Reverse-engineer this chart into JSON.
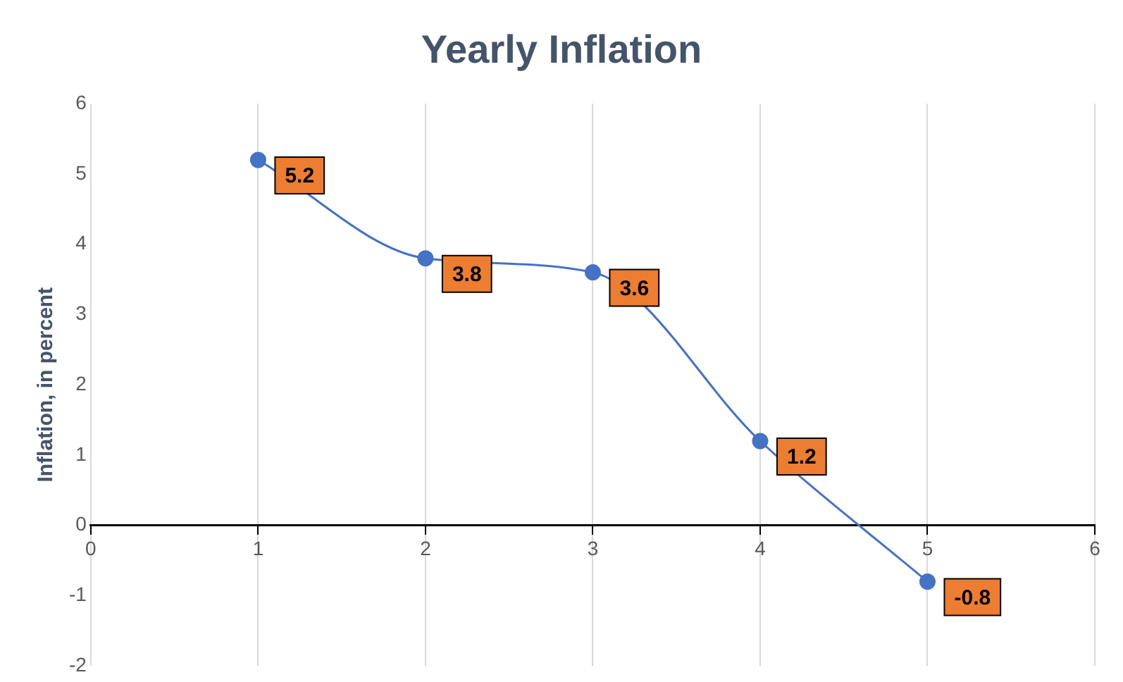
{
  "chart_data": {
    "type": "line",
    "title": "Yearly Inflation",
    "ylabel": "Inflation, in percent",
    "x": [
      1,
      2,
      3,
      4,
      5
    ],
    "series": [
      {
        "color": "#4472c4",
        "values": [
          5.2,
          3.8,
          3.6,
          1.2,
          -0.8
        ]
      }
    ],
    "xlim": [
      0,
      6
    ],
    "xticks": [
      0,
      1,
      2,
      3,
      4,
      5,
      6
    ],
    "ylim": [
      -2,
      6
    ],
    "yticks": [
      -2,
      -1,
      0,
      1,
      2,
      3,
      4,
      5,
      6
    ],
    "grid": "x",
    "data_labels": true,
    "marker": "circle",
    "line_style": "solid",
    "legend": false
  }
}
